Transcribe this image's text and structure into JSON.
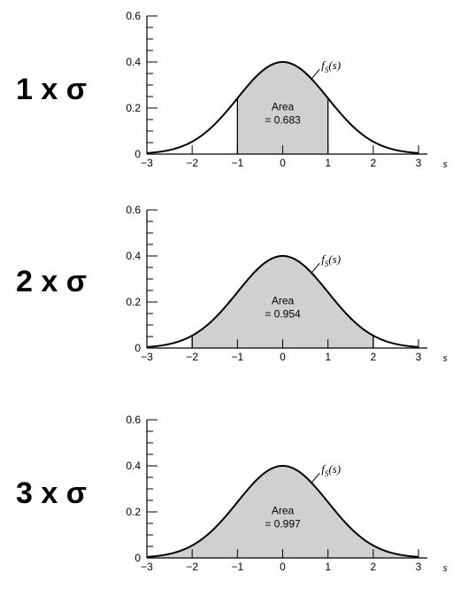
{
  "chart_data": [
    {
      "type": "area",
      "multiplier_label": "1 x σ",
      "curve_label": "f",
      "curve_label_sub": "S",
      "curve_label_arg": "(s)",
      "xlabel": "s",
      "ylabel": "",
      "xlim": [
        -3,
        3
      ],
      "ylim": [
        0,
        0.6
      ],
      "x_ticks": [
        "−3",
        "−2",
        "−1",
        "0",
        "1",
        "2",
        "3"
      ],
      "y_ticks": [
        "0",
        "0.2",
        "0.4",
        "0.6"
      ],
      "shaded_range": [
        -1,
        1
      ],
      "area_title": "Area",
      "area_value": "= 0.683",
      "series": [
        {
          "mean": 0,
          "sd": 1,
          "peak": 0.4
        }
      ]
    },
    {
      "type": "area",
      "multiplier_label": "2 x σ",
      "curve_label": "f",
      "curve_label_sub": "S",
      "curve_label_arg": "(s)",
      "xlabel": "s",
      "ylabel": "",
      "xlim": [
        -3,
        3
      ],
      "ylim": [
        0,
        0.6
      ],
      "x_ticks": [
        "−3",
        "−2",
        "−1",
        "0",
        "1",
        "2",
        "3"
      ],
      "y_ticks": [
        "0",
        "0.2",
        "0.4",
        "0.6"
      ],
      "shaded_range": [
        -2,
        2
      ],
      "area_title": "Area",
      "area_value": "= 0.954",
      "series": [
        {
          "mean": 0,
          "sd": 1,
          "peak": 0.4
        }
      ]
    },
    {
      "type": "area",
      "multiplier_label": "3 x σ",
      "curve_label": "f",
      "curve_label_sub": "S",
      "curve_label_arg": "(s)",
      "xlabel": "s",
      "ylabel": "",
      "xlim": [
        -3,
        3
      ],
      "ylim": [
        0,
        0.6
      ],
      "x_ticks": [
        "−3",
        "−2",
        "−1",
        "0",
        "1",
        "2",
        "3"
      ],
      "y_ticks": [
        "0",
        "0.2",
        "0.4",
        "0.6"
      ],
      "shaded_range": [
        -3,
        3
      ],
      "area_title": "Area",
      "area_value": "= 0.997",
      "series": [
        {
          "mean": 0,
          "sd": 1,
          "peak": 0.4
        }
      ]
    }
  ]
}
